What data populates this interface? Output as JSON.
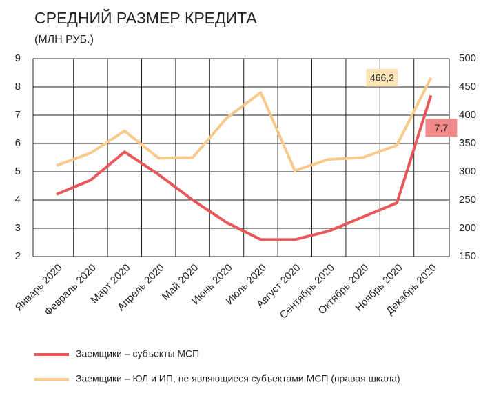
{
  "chart_data": {
    "type": "line",
    "title": "СРЕДНИЙ РАЗМЕР КРЕДИТА",
    "subtitle": "(МЛН РУБ.)",
    "categories": [
      "Январь 2020",
      "Февраль 2020",
      "Март 2020",
      "Апрель 2020",
      "Май 2020",
      "Июнь 2020",
      "Июль 2020",
      "Август 2020",
      "Сентябрь 2020",
      "Октябрь 2020",
      "Ноябрь 2020",
      "Декабрь 2020"
    ],
    "series": [
      {
        "name": "Заемщики – субъекты МСП",
        "color": "#e8585a",
        "label_fill": "#f08a8a",
        "values": [
          4.2,
          4.7,
          5.7,
          4.9,
          4.0,
          3.2,
          2.6,
          2.6,
          2.9,
          3.4,
          3.9,
          7.7
        ],
        "value_labels": [
          null,
          null,
          null,
          null,
          null,
          null,
          null,
          null,
          null,
          null,
          null,
          "7,7"
        ]
      },
      {
        "name": "Заемщики – ЮЛ и ИП, не являющиеся субъектами МСП (правая шкала)",
        "color": "#f8c98a",
        "label_fill": "#fde3b8",
        "axis": "y2",
        "values": [
          311,
          333,
          372,
          324,
          325,
          395,
          440,
          302,
          322,
          325,
          347,
          466.2
        ],
        "value_labels": [
          null,
          null,
          null,
          null,
          null,
          null,
          null,
          null,
          null,
          null,
          null,
          "466,2"
        ]
      }
    ],
    "ylim": [
      2,
      9
    ],
    "yticks": [
      2,
      3,
      4,
      5,
      6,
      7,
      8,
      9
    ],
    "y2lim": [
      150,
      500
    ],
    "y2ticks": [
      150,
      200,
      250,
      300,
      350,
      400,
      450,
      500
    ],
    "grid": true
  }
}
